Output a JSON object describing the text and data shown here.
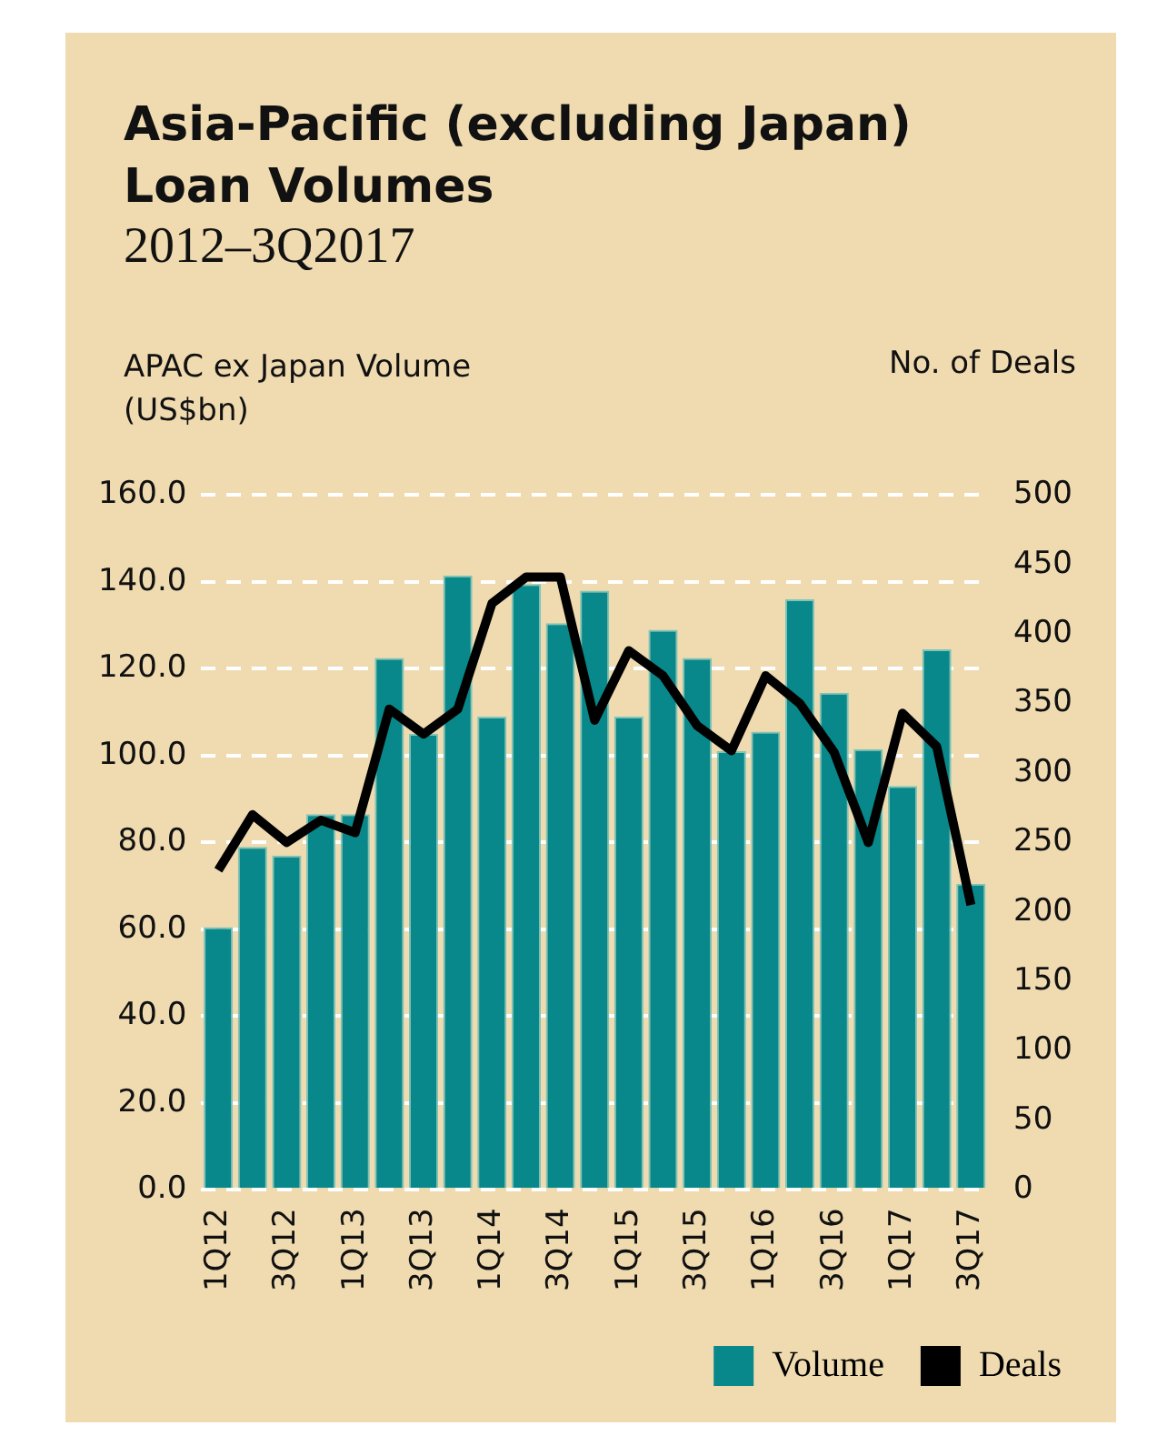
{
  "chart_data": {
    "type": "bar",
    "title": "Asia-Pacific (excluding Japan) Loan Volumes",
    "subtitle": "2012–3Q2017",
    "ylabel": "APAC ex Japan Volume (US$bn)",
    "y2label": "No. of Deals",
    "categories": [
      "1Q12",
      null,
      "3Q12",
      null,
      "1Q13",
      null,
      "3Q13",
      null,
      "1Q14",
      null,
      "3Q14",
      null,
      "1Q15",
      null,
      "3Q15",
      null,
      "1Q16",
      null,
      "3Q16",
      null,
      "1Q17",
      null,
      "3Q17"
    ],
    "series": [
      {
        "name": "Volume",
        "color": "#08888a",
        "values": [
          60.5,
          79,
          77,
          86.5,
          86.5,
          122.5,
          105,
          141.5,
          109,
          139.5,
          130.5,
          138,
          109,
          129,
          122.5,
          101,
          105.5,
          136,
          114.5,
          101.5,
          93,
          124.5,
          70.5
        ]
      },
      {
        "name": "Deals",
        "type": "line",
        "axis": "y2",
        "color": "#000000",
        "values": [
          230,
          270,
          250,
          266,
          257,
          346,
          328,
          346,
          422,
          441,
          441,
          338,
          388,
          370,
          334,
          316,
          370,
          350,
          315,
          250,
          343,
          319,
          205
        ]
      }
    ],
    "ylim": [
      0,
      160
    ],
    "yticks": [
      {
        "value": 0,
        "label": "0.0"
      },
      {
        "value": 20,
        "label": "20.0"
      },
      {
        "value": 40,
        "label": "40.0"
      },
      {
        "value": 60,
        "label": "60.0"
      },
      {
        "value": 80,
        "label": "80.0"
      },
      {
        "value": 100,
        "label": "100.0"
      },
      {
        "value": 120,
        "label": "120.0"
      },
      {
        "value": 140,
        "label": "140.0"
      },
      {
        "value": 160,
        "label": "160.0"
      }
    ],
    "y2lim": [
      0,
      500
    ],
    "y2ticks": [
      0,
      50,
      100,
      150,
      200,
      250,
      300,
      350,
      400,
      450,
      500
    ],
    "grid": "y",
    "legend": "bottom right",
    "marker": "none",
    "line_style": "solid"
  }
}
